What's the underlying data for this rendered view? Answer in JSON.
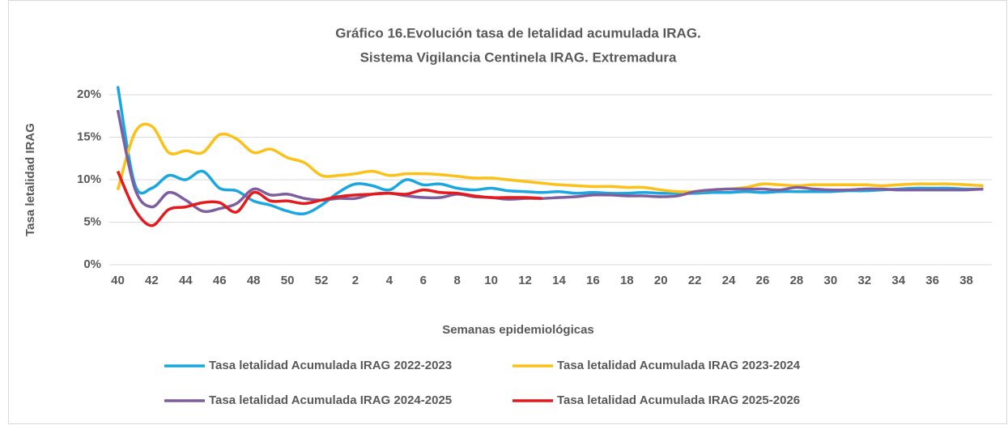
{
  "chart_data": {
    "type": "line",
    "title": "Gráfico 16.Evolución tasa de letalidad acumulada IRAG.",
    "subtitle": "Sistema Vigilancia Centinela IRAG. Extremadura",
    "x_label": "Semanas epidemiológicas",
    "y_label": "Tasa letalidad IRAG",
    "categories": [
      "40",
      null,
      "42",
      null,
      "44",
      null,
      "46",
      null,
      "48",
      null,
      "50",
      null,
      "52",
      null,
      "2",
      null,
      "4",
      null,
      "6",
      null,
      "8",
      null,
      "10",
      null,
      "12",
      null,
      "14",
      null,
      "16",
      null,
      "18",
      null,
      "20",
      null,
      "22",
      null,
      "24",
      null,
      "26",
      null,
      "28",
      null,
      "30",
      null,
      "32",
      null,
      "34",
      null,
      "36",
      null,
      "38",
      null
    ],
    "ylim": [
      0,
      20
    ],
    "yticks": [
      {
        "value": 0,
        "label": "0%"
      },
      {
        "value": 5,
        "label": "5%"
      },
      {
        "value": 10,
        "label": "10%"
      },
      {
        "value": 15,
        "label": "15%"
      },
      {
        "value": 20,
        "label": "20%"
      }
    ],
    "grid": true,
    "legend": "bottom",
    "series": [
      {
        "name": "Tasa letalidad Acumulada IRAG 2022-2023",
        "color": "#1aa7e0",
        "values": [
          21,
          9.5,
          9,
          10.5,
          10,
          11,
          9,
          8.7,
          7.5,
          7,
          6.3,
          6,
          7,
          8.5,
          9.5,
          9.3,
          8.8,
          10,
          9.4,
          9.5,
          9,
          8.8,
          9,
          8.7,
          8.6,
          8.5,
          8.6,
          8.4,
          8.5,
          8.4,
          8.4,
          8.5,
          8.4,
          8.4,
          8.4,
          8.5,
          8.5,
          8.6,
          8.5,
          8.6,
          8.6,
          8.6,
          8.6,
          8.7,
          8.7,
          8.8,
          8.9,
          9,
          9,
          9,
          8.9,
          8.9
        ]
      },
      {
        "name": "Tasa letalidad Acumulada IRAG 2023-2024",
        "color": "#fcc118",
        "values": [
          8.8,
          15.5,
          16.3,
          13.2,
          13.4,
          13.2,
          15.3,
          14.8,
          13.2,
          13.6,
          12.6,
          12,
          10.5,
          10.5,
          10.7,
          11,
          10.5,
          10.7,
          10.7,
          10.6,
          10.4,
          10.2,
          10.2,
          10,
          9.8,
          9.6,
          9.4,
          9.3,
          9.2,
          9.2,
          9.1,
          9.1,
          8.8,
          8.6,
          8.6,
          8.8,
          8.9,
          9.1,
          9.5,
          9.4,
          9.3,
          9.4,
          9.4,
          9.4,
          9.4,
          9.3,
          9.4,
          9.5,
          9.5,
          9.5,
          9.4,
          9.3
        ]
      },
      {
        "name": "Tasa letalidad Acumulada IRAG 2024-2025",
        "color": "#7e5e9e",
        "values": [
          18.2,
          9,
          6.8,
          8.5,
          7.6,
          6.3,
          6.6,
          7.2,
          8.9,
          8.2,
          8.3,
          7.8,
          7.6,
          7.8,
          7.8,
          8.3,
          8.4,
          8.1,
          7.9,
          7.9,
          8.3,
          8,
          7.9,
          7.7,
          7.8,
          7.8,
          7.9,
          8,
          8.2,
          8.2,
          8.1,
          8.1,
          8,
          8.1,
          8.6,
          8.8,
          8.9,
          8.9,
          8.9,
          8.8,
          9.1,
          8.9,
          8.8,
          8.8,
          8.9,
          8.9,
          8.8,
          8.8,
          8.8,
          8.8,
          8.8,
          8.9
        ]
      },
      {
        "name": "Tasa letalidad Acumulada IRAG 2025-2026",
        "color": "#e41a1c",
        "values": [
          11,
          6.5,
          4.6,
          6.5,
          6.8,
          7.3,
          7.3,
          6.2,
          8.5,
          7.5,
          7.5,
          7.2,
          7.6,
          8,
          8.2,
          8.3,
          8.4,
          8.3,
          8.8,
          8.5,
          8.4,
          8.1,
          7.9,
          7.9,
          7.9,
          7.8,
          null,
          null,
          null,
          null,
          null,
          null,
          null,
          null,
          null,
          null,
          null,
          null,
          null,
          null,
          null,
          null,
          null,
          null,
          null,
          null,
          null,
          null,
          null,
          null,
          null,
          null
        ]
      }
    ]
  }
}
